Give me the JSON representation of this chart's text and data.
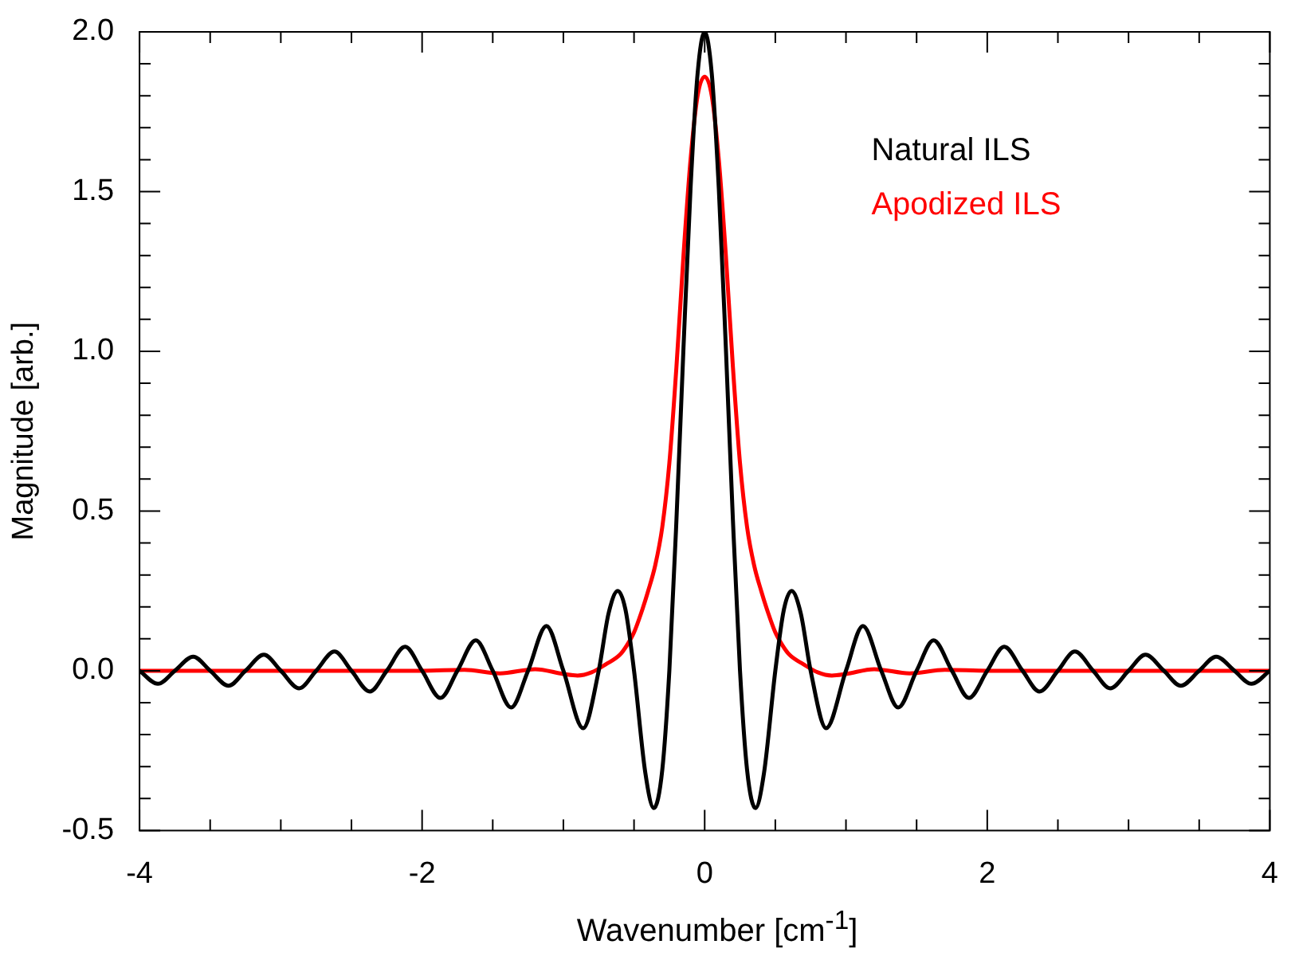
{
  "chart_data": {
    "type": "line",
    "xlabel": "Wavenumber [cm$^{-1}$]",
    "ylabel": "Magnitude [arb.]",
    "xlim": [
      -4,
      4
    ],
    "ylim": [
      -0.5,
      2.0
    ],
    "xticks": [
      -4,
      {
        "value": -3.5,
        "label": null
      },
      {
        "value": -3,
        "label": null
      },
      {
        "value": -2.5,
        "label": null
      },
      -2,
      {
        "value": -1.5,
        "label": null
      },
      {
        "value": -1,
        "label": null
      },
      {
        "value": -0.5,
        "label": null
      },
      0,
      {
        "value": 0.5,
        "label": null
      },
      {
        "value": 1,
        "label": null
      },
      {
        "value": 1.5,
        "label": null
      },
      2,
      {
        "value": 2.5,
        "label": null
      },
      {
        "value": 3,
        "label": null
      },
      {
        "value": 3.5,
        "label": null
      },
      4
    ],
    "yticks": [
      {
        "value": -0.5,
        "label": "-0.5"
      },
      {
        "value": -0.4,
        "label": null
      },
      {
        "value": -0.3,
        "label": null
      },
      {
        "value": -0.2,
        "label": null
      },
      {
        "value": -0.1,
        "label": null
      },
      {
        "value": 0,
        "label": "0.0"
      },
      {
        "value": 0.1,
        "label": null
      },
      {
        "value": 0.2,
        "label": null
      },
      {
        "value": 0.3,
        "label": null
      },
      {
        "value": 0.4,
        "label": null
      },
      {
        "value": 0.5,
        "label": "0.5"
      },
      {
        "value": 0.6,
        "label": null
      },
      {
        "value": 0.7,
        "label": null
      },
      {
        "value": 0.8,
        "label": null
      },
      {
        "value": 0.9,
        "label": null
      },
      {
        "value": 1,
        "label": "1.0"
      },
      {
        "value": 1.1,
        "label": null
      },
      {
        "value": 1.2,
        "label": null
      },
      {
        "value": 1.3,
        "label": null
      },
      {
        "value": 1.4,
        "label": null
      },
      {
        "value": 1.5,
        "label": "1.5"
      },
      {
        "value": 1.6,
        "label": null
      },
      {
        "value": 1.7,
        "label": null
      },
      {
        "value": 1.8,
        "label": null
      },
      {
        "value": 1.9,
        "label": null
      },
      {
        "value": 2,
        "label": "2.0"
      }
    ],
    "grid": false,
    "legend": "top right",
    "marker": "none",
    "line_style": "solid",
    "series": [
      {
        "name": "Natural ILS",
        "color": "#000000",
        "x": [
          -4,
          -3.87,
          -3.75,
          -3.62,
          -3.5,
          -3.37,
          -3.25,
          -3.12,
          -3,
          -2.87,
          -2.75,
          -2.62,
          -2.5,
          -2.37,
          -2.25,
          -2.12,
          -2,
          -1.87,
          -1.75,
          -1.62,
          -1.5,
          -1.37,
          -1.25,
          -1.12,
          -1,
          -0.86,
          -0.75,
          -0.68,
          -0.615,
          -0.56,
          -0.5,
          -0.42,
          -0.36,
          -0.3,
          -0.25,
          -0.2,
          -0.15,
          -0.1,
          -0.05,
          0,
          0.05,
          0.1,
          0.15,
          0.2,
          0.25,
          0.3,
          0.36,
          0.42,
          0.5,
          0.56,
          0.615,
          0.68,
          0.75,
          0.86,
          1,
          1.12,
          1.25,
          1.37,
          1.5,
          1.62,
          1.75,
          1.87,
          2,
          2.12,
          2.25,
          2.37,
          2.5,
          2.62,
          2.75,
          2.87,
          3,
          3.12,
          3.25,
          3.37,
          3.5,
          3.62,
          3.75,
          3.87,
          4
        ],
        "values": [
          0,
          -0.041,
          0,
          0.044,
          0,
          -0.047,
          0,
          0.05,
          0,
          -0.055,
          0,
          0.06,
          0,
          -0.065,
          0,
          0.075,
          0,
          -0.085,
          0,
          0.095,
          0,
          -0.115,
          0,
          0.14,
          0,
          -0.18,
          0,
          0.18,
          0.25,
          0.19,
          0,
          -0.32,
          -0.43,
          -0.31,
          0,
          0.47,
          1.01,
          1.51,
          1.87,
          2,
          1.87,
          1.51,
          1.01,
          0.47,
          0,
          -0.31,
          -0.43,
          -0.32,
          0,
          0.19,
          0.25,
          0.18,
          0,
          -0.18,
          0,
          0.14,
          0,
          -0.115,
          0,
          0.095,
          0,
          -0.085,
          0,
          0.075,
          0,
          -0.065,
          0,
          0.06,
          0,
          -0.055,
          0,
          0.05,
          0,
          -0.047,
          0,
          0.044,
          0,
          -0.041,
          0
        ]
      },
      {
        "name": "Apodized ILS",
        "color": "#ff0000",
        "x": [
          -4,
          -3.5,
          -3,
          -2.5,
          -2,
          -1.7,
          -1.45,
          -1.2,
          -1,
          -0.9,
          -0.8,
          -0.7,
          -0.6,
          -0.55,
          -0.5,
          -0.45,
          -0.4,
          -0.35,
          -0.3,
          -0.25,
          -0.2,
          -0.15,
          -0.1,
          -0.05,
          0,
          0.05,
          0.1,
          0.15,
          0.2,
          0.25,
          0.3,
          0.35,
          0.4,
          0.45,
          0.5,
          0.55,
          0.6,
          0.7,
          0.8,
          0.9,
          1,
          1.2,
          1.45,
          1.7,
          2,
          2.5,
          3,
          3.5,
          4
        ],
        "values": [
          0,
          0,
          0,
          0,
          0,
          0.003,
          -0.008,
          0.005,
          -0.01,
          -0.015,
          -0.005,
          0.02,
          0.05,
          0.08,
          0.12,
          0.18,
          0.25,
          0.33,
          0.45,
          0.65,
          0.95,
          1.3,
          1.6,
          1.8,
          1.86,
          1.8,
          1.6,
          1.3,
          0.95,
          0.65,
          0.45,
          0.33,
          0.25,
          0.18,
          0.12,
          0.08,
          0.05,
          0.02,
          -0.005,
          -0.015,
          -0.01,
          0.005,
          -0.008,
          0.003,
          0,
          0,
          0,
          0,
          0
        ]
      }
    ]
  }
}
